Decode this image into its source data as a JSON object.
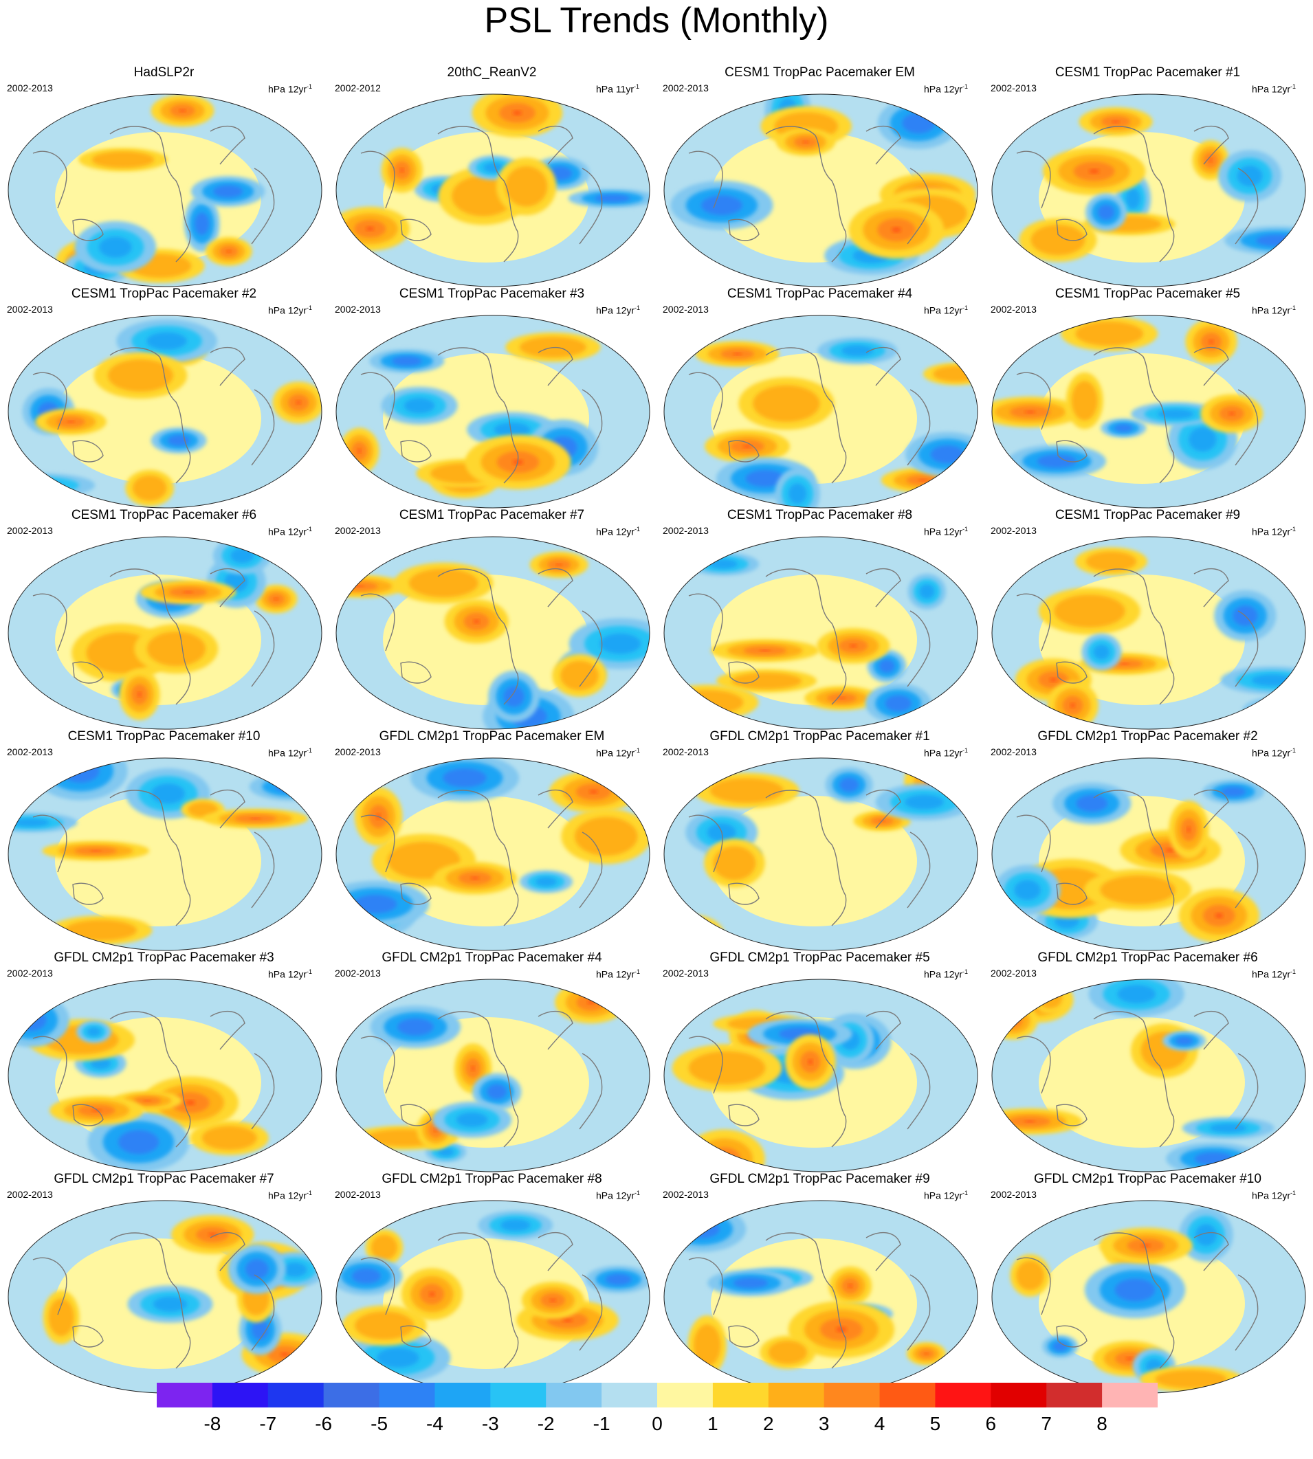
{
  "title": "PSL Trends (Monthly)",
  "units_prefix": "hPa",
  "colorbar": {
    "labels": [
      "-8",
      "-7",
      "-6",
      "-5",
      "-4",
      "-3",
      "-2",
      "-1",
      "0",
      "1",
      "2",
      "3",
      "4",
      "5",
      "6",
      "7",
      "8"
    ],
    "colors": [
      "#7d24f0",
      "#2d14f5",
      "#1e37f0",
      "#3c6ee6",
      "#2d82f5",
      "#1ea5f5",
      "#28c3f5",
      "#82c8f0",
      "#b4dff0",
      "#fff7a0",
      "#ffd72d",
      "#ffaf19",
      "#ff871e",
      "#ff5a14",
      "#ff1414",
      "#e10000",
      "#d22d2d",
      "#ffb4b4"
    ]
  },
  "chart_data": {
    "type": "heatmap",
    "title": "PSL Trends (Monthly)",
    "colorbar_levels": [
      -8,
      -7,
      -6,
      -5,
      -4,
      -3,
      -2,
      -1,
      0,
      1,
      2,
      3,
      4,
      5,
      6,
      7,
      8
    ],
    "panels": [
      {
        "name": "HadSLP2r",
        "period": "2002-2013",
        "trend_period": "12yr"
      },
      {
        "name": "20thC_ReanV2",
        "period": "2002-2012",
        "trend_period": "11yr"
      },
      {
        "name": "CESM1 TropPac Pacemaker EM",
        "period": "2002-2013",
        "trend_period": "12yr"
      },
      {
        "name": "CESM1 TropPac Pacemaker #1",
        "period": "2002-2013",
        "trend_period": "12yr"
      },
      {
        "name": "CESM1 TropPac Pacemaker #2",
        "period": "2002-2013",
        "trend_period": "12yr"
      },
      {
        "name": "CESM1 TropPac Pacemaker #3",
        "period": "2002-2013",
        "trend_period": "12yr"
      },
      {
        "name": "CESM1 TropPac Pacemaker #4",
        "period": "2002-2013",
        "trend_period": "12yr"
      },
      {
        "name": "CESM1 TropPac Pacemaker #5",
        "period": "2002-2013",
        "trend_period": "12yr"
      },
      {
        "name": "CESM1 TropPac Pacemaker #6",
        "period": "2002-2013",
        "trend_period": "12yr"
      },
      {
        "name": "CESM1 TropPac Pacemaker #7",
        "period": "2002-2013",
        "trend_period": "12yr"
      },
      {
        "name": "CESM1 TropPac Pacemaker #8",
        "period": "2002-2013",
        "trend_period": "12yr"
      },
      {
        "name": "CESM1 TropPac Pacemaker #9",
        "period": "2002-2013",
        "trend_period": "12yr"
      },
      {
        "name": "CESM1 TropPac Pacemaker #10",
        "period": "2002-2013",
        "trend_period": "12yr"
      },
      {
        "name": "GFDL CM2p1 TropPac Pacemaker EM",
        "period": "2002-2013",
        "trend_period": "12yr"
      },
      {
        "name": "GFDL CM2p1 TropPac Pacemaker #1",
        "period": "2002-2013",
        "trend_period": "12yr"
      },
      {
        "name": "GFDL CM2p1 TropPac Pacemaker #2",
        "period": "2002-2013",
        "trend_period": "12yr"
      },
      {
        "name": "GFDL CM2p1 TropPac Pacemaker #3",
        "period": "2002-2013",
        "trend_period": "12yr"
      },
      {
        "name": "GFDL CM2p1 TropPac Pacemaker #4",
        "period": "2002-2013",
        "trend_period": "12yr"
      },
      {
        "name": "GFDL CM2p1 TropPac Pacemaker #5",
        "period": "2002-2013",
        "trend_period": "12yr"
      },
      {
        "name": "GFDL CM2p1 TropPac Pacemaker #6",
        "period": "2002-2013",
        "trend_period": "12yr"
      },
      {
        "name": "GFDL CM2p1 TropPac Pacemaker #7",
        "period": "2002-2013",
        "trend_period": "12yr"
      },
      {
        "name": "GFDL CM2p1 TropPac Pacemaker #8",
        "period": "2002-2013",
        "trend_period": "12yr"
      },
      {
        "name": "GFDL CM2p1 TropPac Pacemaker #9",
        "period": "2002-2013",
        "trend_period": "12yr"
      },
      {
        "name": "GFDL CM2p1 TropPac Pacemaker #10",
        "period": "2002-2013",
        "trend_period": "12yr"
      }
    ]
  }
}
